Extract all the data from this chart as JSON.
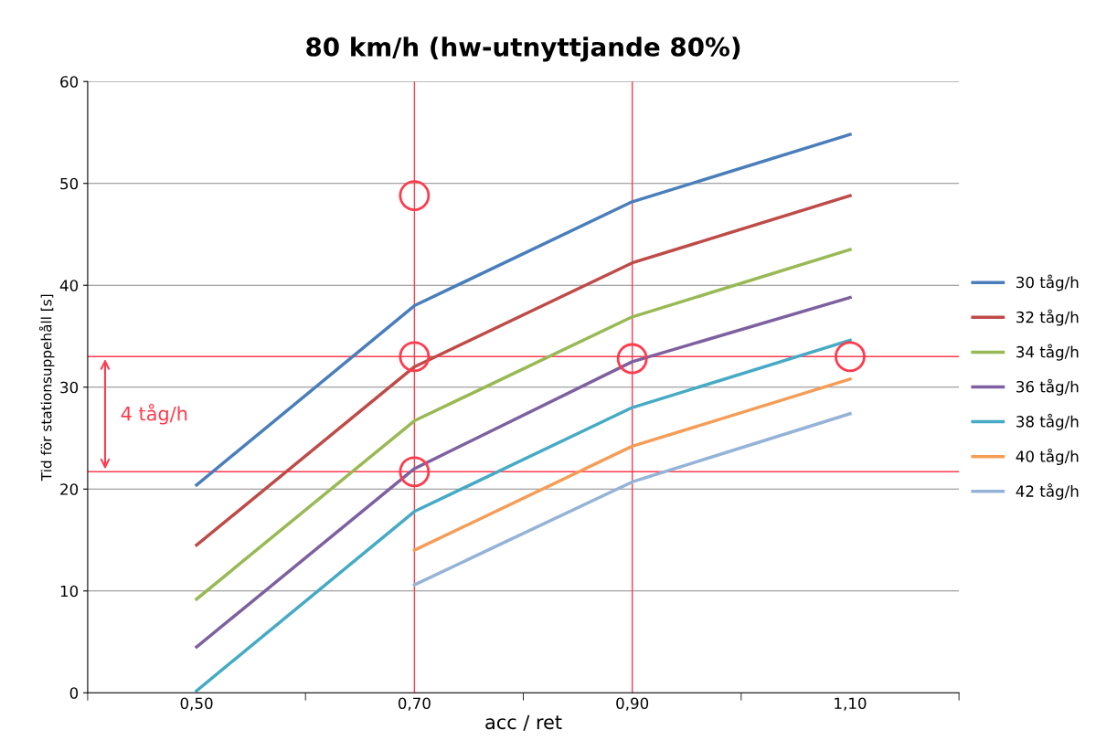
{
  "chart_data": {
    "type": "line",
    "title": "80 km/h (hw-utnyttjande 80%)",
    "xlabel": "acc / ret",
    "ylabel": "Tid för stationsuppehåll [s]",
    "categories": [
      "0,50",
      "0,70",
      "0,90",
      "1,10"
    ],
    "ylim": [
      0,
      60
    ],
    "yticks": [
      0,
      10,
      20,
      30,
      40,
      50,
      60
    ],
    "grid": "y",
    "legend": "right",
    "series": [
      {
        "name": "30 tåg/h",
        "color": "#4a7ebb",
        "values": [
          20.4,
          38.0,
          48.2,
          54.8
        ]
      },
      {
        "name": "32 tåg/h",
        "color": "#be4b48",
        "values": [
          14.5,
          32.0,
          42.2,
          48.8
        ]
      },
      {
        "name": "34 tåg/h",
        "color": "#98b954",
        "values": [
          9.2,
          26.7,
          36.9,
          43.5
        ]
      },
      {
        "name": "36 tåg/h",
        "color": "#7d60a0",
        "values": [
          4.5,
          22.0,
          32.5,
          38.8
        ]
      },
      {
        "name": "38 tåg/h",
        "color": "#46aac5",
        "values": [
          0.2,
          17.8,
          28.0,
          34.6
        ]
      },
      {
        "name": "40 tåg/h",
        "color": "#f59d56",
        "values": [
          null,
          14.0,
          24.2,
          30.8
        ]
      },
      {
        "name": "42 tåg/h",
        "color": "#95b3d7",
        "values": [
          null,
          10.6,
          20.7,
          27.4
        ]
      },
      {
        "type": "scatter",
        "marker": "circle",
        "color": "#ff3b4e",
        "x": [
          "0,70",
          "0,70",
          "0,90",
          "1,10",
          "0,70"
        ],
        "values": [
          48.8,
          33.0,
          32.8,
          33.0,
          21.7
        ]
      }
    ],
    "ref_lines": [
      {
        "axis": "y",
        "value": 33.0,
        "color": "#ff3b4e"
      },
      {
        "axis": "y",
        "value": 21.7,
        "color": "#ff3b4e"
      },
      {
        "axis": "x",
        "value": "0,70",
        "color": "#ff3b4e"
      },
      {
        "axis": "x",
        "value": "0,90",
        "color": "#ff3b4e"
      }
    ],
    "annotations": [
      "4 tåg/h"
    ]
  }
}
